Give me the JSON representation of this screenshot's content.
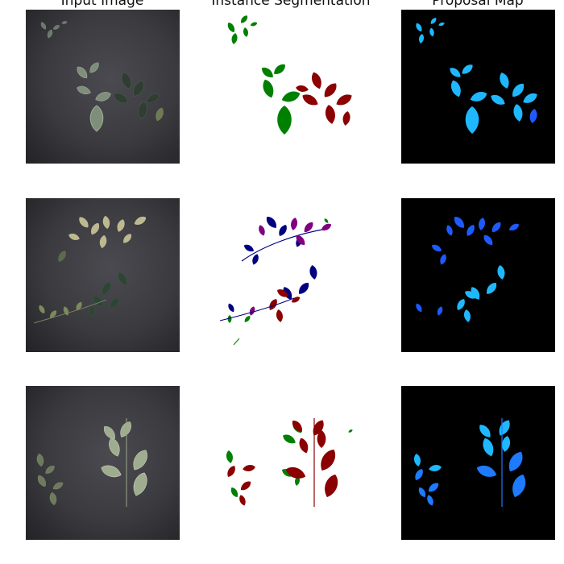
{
  "titles": {
    "input": "Input Image",
    "segmentation": "Instance Segmentation",
    "proposal": "Proposal Map"
  },
  "colors": {
    "input_background": "#3a3a3f",
    "segmentation_background": "#ffffff",
    "proposal_background": "#000000",
    "instance_green": "#008000",
    "instance_dark_red": "#8b0000",
    "instance_navy": "#000080",
    "instance_purple": "#800080",
    "proposal_cyan": "#00bfff",
    "proposal_blue": "#1e5aff"
  },
  "rows": [
    {
      "row": 1
    },
    {
      "row": 2
    },
    {
      "row": 3
    }
  ]
}
